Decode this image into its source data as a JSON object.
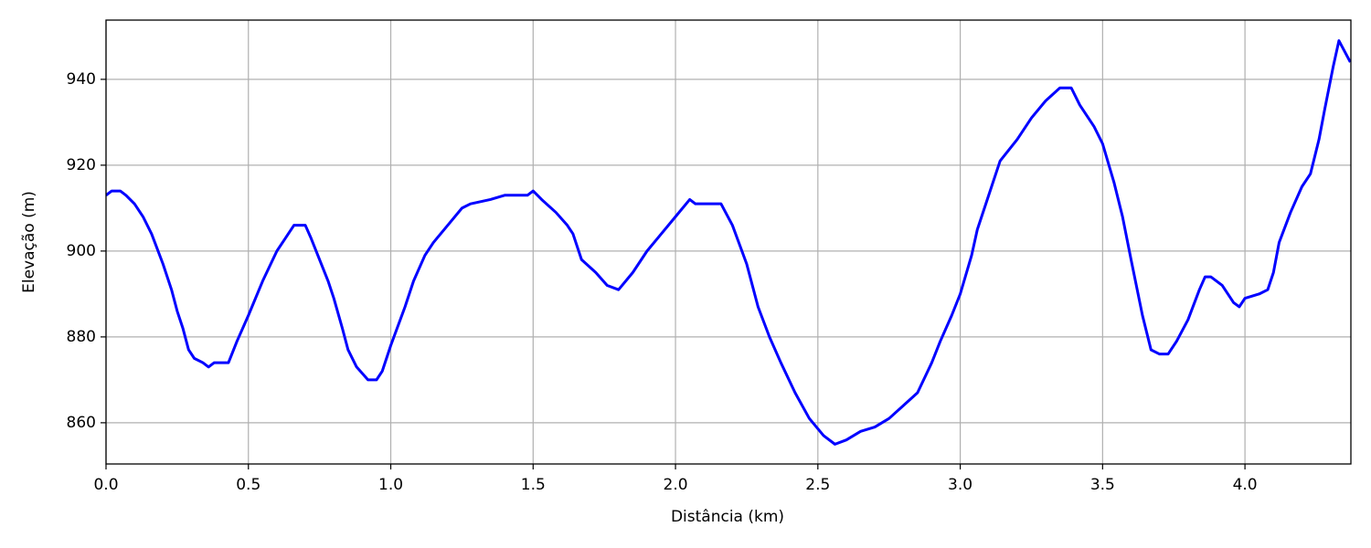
{
  "chart_data": {
    "type": "line",
    "xlabel": "Distância (km)",
    "ylabel": "Elevação (m)",
    "x": [
      0.0,
      0.02,
      0.05,
      0.07,
      0.1,
      0.13,
      0.16,
      0.2,
      0.23,
      0.25,
      0.27,
      0.29,
      0.31,
      0.34,
      0.36,
      0.38,
      0.43,
      0.46,
      0.5,
      0.55,
      0.6,
      0.63,
      0.66,
      0.7,
      0.72,
      0.75,
      0.78,
      0.8,
      0.83,
      0.85,
      0.88,
      0.92,
      0.95,
      0.97,
      1.0,
      1.05,
      1.08,
      1.12,
      1.15,
      1.2,
      1.25,
      1.28,
      1.35,
      1.4,
      1.48,
      1.5,
      1.53,
      1.58,
      1.62,
      1.64,
      1.67,
      1.72,
      1.76,
      1.8,
      1.85,
      1.9,
      1.95,
      2.0,
      2.05,
      2.07,
      2.16,
      2.2,
      2.25,
      2.29,
      2.33,
      2.37,
      2.42,
      2.47,
      2.52,
      2.56,
      2.6,
      2.65,
      2.7,
      2.75,
      2.8,
      2.85,
      2.9,
      2.93,
      2.97,
      3.0,
      3.04,
      3.06,
      3.1,
      3.14,
      3.2,
      3.25,
      3.3,
      3.35,
      3.39,
      3.42,
      3.47,
      3.5,
      3.54,
      3.57,
      3.6,
      3.64,
      3.67,
      3.7,
      3.73,
      3.76,
      3.8,
      3.84,
      3.86,
      3.88,
      3.92,
      3.96,
      3.98,
      4.0,
      4.05,
      4.08,
      4.1,
      4.12,
      4.16,
      4.2,
      4.23,
      4.26,
      4.28,
      4.31,
      4.33,
      4.37
    ],
    "values": [
      913,
      914,
      914,
      913,
      911,
      908,
      904,
      897,
      891,
      886,
      882,
      877,
      875,
      874,
      873,
      874,
      874,
      879,
      885,
      893,
      900,
      903,
      906,
      906,
      903,
      898,
      893,
      889,
      882,
      877,
      873,
      870,
      870,
      872,
      878,
      887,
      893,
      899,
      902,
      906,
      910,
      911,
      912,
      913,
      913,
      914,
      912,
      909,
      906,
      904,
      898,
      895,
      892,
      891,
      895,
      900,
      904,
      908,
      912,
      911,
      911,
      906,
      897,
      887,
      880,
      874,
      867,
      861,
      857,
      855,
      856,
      858,
      859,
      861,
      864,
      867,
      874,
      879,
      885,
      890,
      899,
      905,
      913,
      921,
      926,
      931,
      935,
      938,
      938,
      934,
      929,
      925,
      916,
      908,
      898,
      885,
      877,
      876,
      876,
      879,
      884,
      891,
      894,
      894,
      892,
      888,
      887,
      889,
      890,
      891,
      895,
      902,
      909,
      915,
      918,
      926,
      933,
      943,
      949,
      944
    ],
    "color": "#0000ff",
    "xlim": [
      0,
      4.372
    ],
    "ylim": [
      850.4,
      953.8
    ],
    "xticks": [
      {
        "value": 0,
        "label": "0.0"
      },
      0.5,
      {
        "value": 1,
        "label": "1.0"
      },
      1.5,
      {
        "value": 2,
        "label": "2.0"
      },
      2.5,
      {
        "value": 3,
        "label": "3.0"
      },
      3.5,
      {
        "value": 4,
        "label": "4.0"
      }
    ],
    "yticks": [
      860,
      880,
      900,
      920,
      940
    ],
    "grid": true
  }
}
